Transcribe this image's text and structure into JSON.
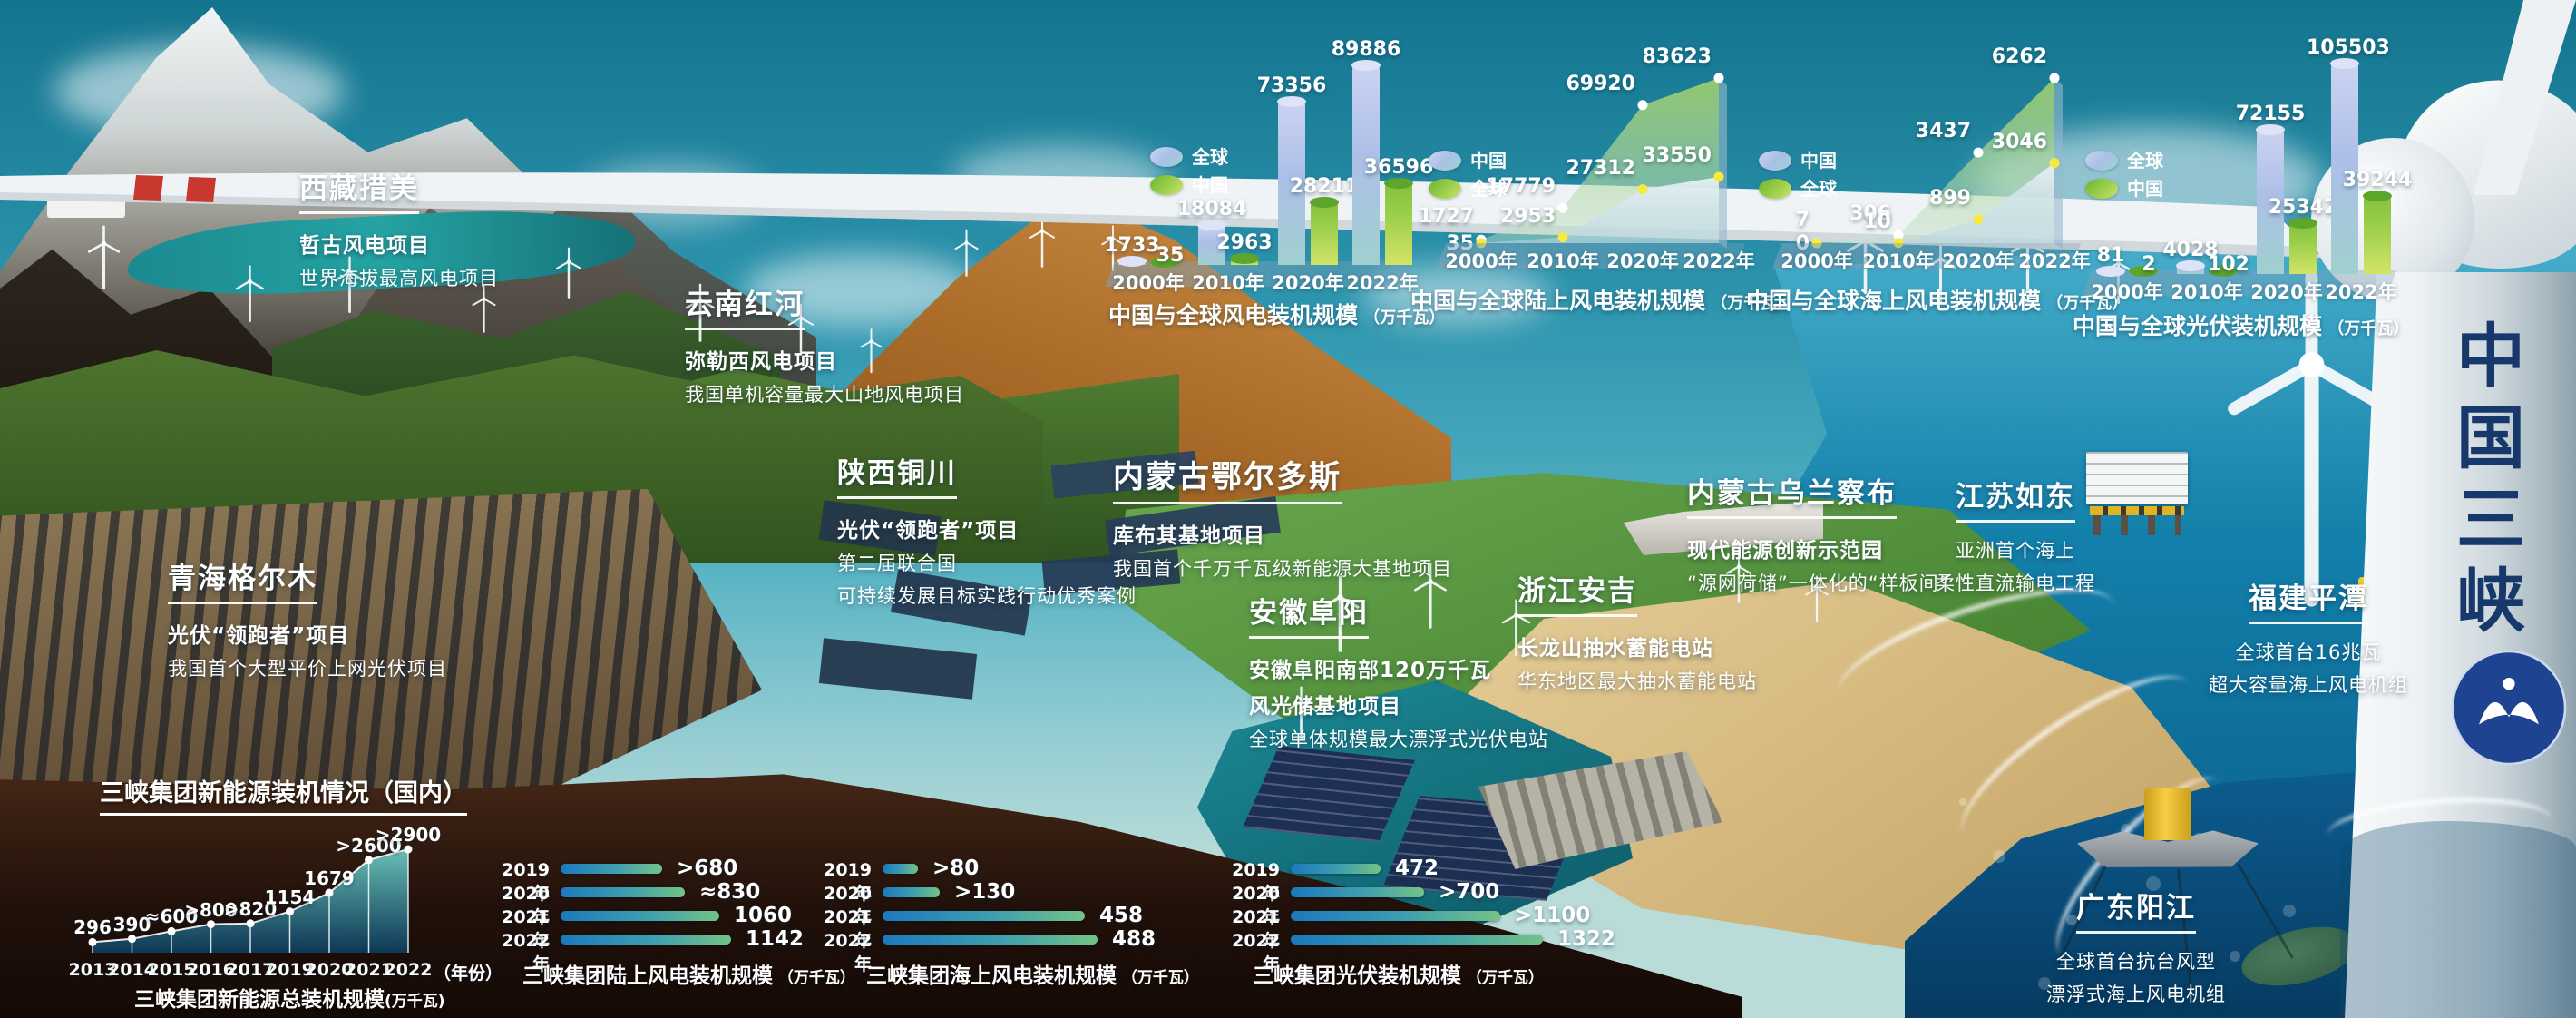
{
  "brand": {
    "vertical_name": "中国三峡",
    "logo_icon": "ctg-logo-icon"
  },
  "projects": [
    {
      "id": "xizang-cuomei",
      "title": "西藏措美",
      "lines": [
        {
          "text": "哲古风电项目",
          "bold": true
        },
        {
          "text": "世界海拔最高风电项目",
          "bold": false
        }
      ]
    },
    {
      "id": "yunnan-honghe",
      "title": "云南红河",
      "lines": [
        {
          "text": "弥勒西风电项目",
          "bold": true
        },
        {
          "text": "我国单机容量最大山地风电项目",
          "bold": false
        }
      ]
    },
    {
      "id": "qinghai-geermu",
      "title": "青海格尔木",
      "lines": [
        {
          "text": "光伏“领跑者”项目",
          "bold": true
        },
        {
          "text": "我国首个大型平价上网光伏项目",
          "bold": false
        }
      ]
    },
    {
      "id": "shaanxi-tongchuan",
      "title": "陕西铜川",
      "lines": [
        {
          "text": "光伏“领跑者”项目",
          "bold": true
        },
        {
          "text": "第二届联合国",
          "bold": false
        },
        {
          "text": "可持续发展目标实践行动优秀案例",
          "bold": false
        }
      ]
    },
    {
      "id": "neimenggu-eerduosi",
      "title": "内蒙古鄂尔多斯",
      "lines": [
        {
          "text": "库布其基地项目",
          "bold": true
        },
        {
          "text": "我国首个千万千瓦级新能源大基地项目",
          "bold": false
        }
      ]
    },
    {
      "id": "anhui-fuyang",
      "title": "安徽阜阳",
      "lines": [
        {
          "text": "安徽阜阳南部120万千瓦",
          "bold": true
        },
        {
          "text": "风光储基地项目",
          "bold": true
        },
        {
          "text": "全球单体规模最大漂浮式光伏电站",
          "bold": false
        }
      ]
    },
    {
      "id": "zhejiang-anji",
      "title": "浙江安吉",
      "lines": [
        {
          "text": "长龙山抽水蓄能电站",
          "bold": true
        },
        {
          "text": "华东地区最大抽水蓄能电站",
          "bold": false
        }
      ]
    },
    {
      "id": "neimenggu-wulanchabu",
      "title": "内蒙古乌兰察布",
      "lines": [
        {
          "text": "现代能源创新示范园",
          "bold": true
        },
        {
          "text": "“源网荷储”一体化的“样板间”",
          "bold": false
        }
      ]
    },
    {
      "id": "jiangsu-rudong",
      "title": "江苏如东",
      "lines": [
        {
          "text": "亚洲首个海上",
          "bold": false
        },
        {
          "text": "柔性直流输电工程",
          "bold": false
        }
      ]
    },
    {
      "id": "fujian-pingtan",
      "title": "福建平潭",
      "lines": [
        {
          "text": "全球首台16兆瓦",
          "bold": false
        },
        {
          "text": "超大容量海上风电机组",
          "bold": false
        }
      ]
    },
    {
      "id": "guangdong-yangjiang",
      "title": "广东阳江",
      "lines": [
        {
          "text": "全球首台抗台风型",
          "bold": false
        },
        {
          "text": "漂浮式海上风电机组",
          "bold": false
        }
      ]
    }
  ],
  "chart_data": [
    {
      "id": "china-global-wind",
      "type": "bar",
      "title": "中国与全球风电装机规模",
      "unit": "（万千瓦）",
      "categories": [
        "2000年",
        "2010年",
        "2020年",
        "2022年"
      ],
      "legend": [
        {
          "label": "全球",
          "swatch": "blue"
        },
        {
          "label": "中国",
          "swatch": "green"
        }
      ],
      "series": [
        {
          "name": "全球",
          "values": [
            1733,
            18084,
            73356,
            89886
          ]
        },
        {
          "name": "中国",
          "values": [
            35,
            2963,
            28211,
            36596
          ]
        }
      ]
    },
    {
      "id": "china-global-onshore-wind",
      "type": "area",
      "title": "中国与全球陆上风电装机规模",
      "unit": "（万千瓦）",
      "categories": [
        "2000年",
        "2010年",
        "2020年",
        "2022年"
      ],
      "legend": [
        {
          "label": "中国",
          "swatch": "blue"
        },
        {
          "label": "全球",
          "swatch": "green"
        }
      ],
      "series": [
        {
          "name": "全球",
          "values": [
            1727,
            17779,
            69920,
            83623
          ]
        },
        {
          "name": "中国",
          "values": [
            35,
            2953,
            27312,
            33550
          ]
        }
      ]
    },
    {
      "id": "china-global-offshore-wind",
      "type": "area",
      "title": "中国与全球海上风电装机规模",
      "unit": "（万千瓦）",
      "categories": [
        "2000年",
        "2010年",
        "2020年",
        "2022年"
      ],
      "legend": [
        {
          "label": "中国",
          "swatch": "blue"
        },
        {
          "label": "全球",
          "swatch": "green"
        }
      ],
      "series": [
        {
          "name": "全球",
          "values": [
            7,
            306,
            3437,
            6262
          ]
        },
        {
          "name": "中国",
          "values": [
            0,
            10,
            899,
            3046
          ]
        }
      ]
    },
    {
      "id": "china-global-solar",
      "type": "bar",
      "title": "中国与全球光伏装机规模",
      "unit": "（万千瓦）",
      "categories": [
        "2000年",
        "2010年",
        "2020年",
        "2022年"
      ],
      "legend": [
        {
          "label": "全球",
          "swatch": "blue"
        },
        {
          "label": "中国",
          "swatch": "green"
        }
      ],
      "series": [
        {
          "name": "全球",
          "values": [
            81,
            4028,
            72155,
            105503
          ]
        },
        {
          "name": "中国",
          "values": [
            2,
            102,
            25342,
            39244
          ]
        }
      ]
    },
    {
      "id": "ctg-newenergy-total",
      "type": "area-line",
      "title": "三峡集团新能源装机情况（国内）",
      "caption": "三峡集团新能源总装机规模",
      "caption_unit": "(万千瓦)",
      "x_suffix": "（年份）",
      "categories": [
        "2013",
        "2014",
        "2015",
        "2016",
        "2017",
        "2019",
        "2020",
        "2021",
        "2022"
      ],
      "labels": [
        "296",
        "390",
        "≈600",
        ">800",
        ">820",
        "1154",
        "1679",
        ">2600",
        ">2900"
      ],
      "values": [
        296,
        390,
        600,
        800,
        820,
        1154,
        1679,
        2600,
        2900
      ]
    },
    {
      "id": "ctg-onshore-wind",
      "type": "hbar",
      "title": "三峡集团陆上风电装机规模",
      "unit": "（万千瓦）",
      "categories": [
        "2019年",
        "2020年",
        "2021年",
        "2022年"
      ],
      "labels": [
        ">680",
        "≈830",
        "1060",
        "1142"
      ],
      "values": [
        680,
        830,
        1060,
        1142
      ]
    },
    {
      "id": "ctg-offshore-wind",
      "type": "hbar",
      "title": "三峡集团海上风电装机规模",
      "unit": "（万千瓦）",
      "categories": [
        "2019年",
        "2020年",
        "2021年",
        "2022年"
      ],
      "labels": [
        ">80",
        ">130",
        "458",
        "488"
      ],
      "values": [
        80,
        130,
        458,
        488
      ]
    },
    {
      "id": "ctg-solar",
      "type": "hbar",
      "title": "三峡集团光伏装机规模",
      "unit": "（万千瓦）",
      "categories": [
        "2019年",
        "2020年",
        "2021年",
        "2022年"
      ],
      "labels": [
        "472",
        ">700",
        ">1100",
        "1322"
      ],
      "values": [
        472,
        700,
        1100,
        1322
      ]
    }
  ],
  "colors": {
    "sky_top": "#13748e",
    "sky_mid": "#3ba3bd",
    "ocean": "#1380ab",
    "ocean_deep": "#063a60",
    "soil": "#2a140a",
    "global_bar": "#adbfe8",
    "china_bar": "#9ccf4b",
    "dot_global": "#ffffff",
    "dot_china": "#f6e93f",
    "hbar_start": "#1b79bd",
    "hbar_end": "#74c287",
    "brand_navy": "#17386b",
    "logo_blue": "#1e4390"
  }
}
